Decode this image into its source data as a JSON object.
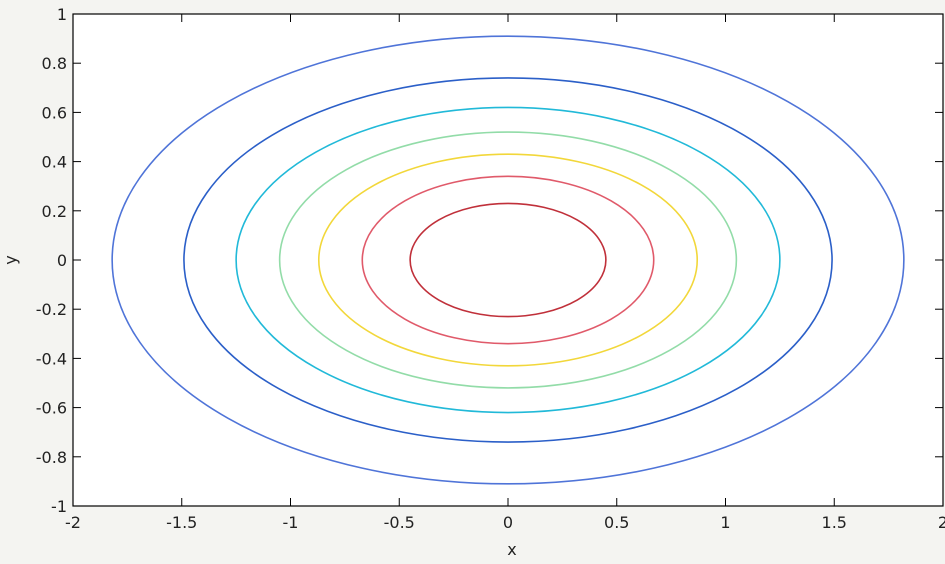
{
  "chart_data": {
    "type": "contour",
    "xlabel": "x",
    "ylabel": "y",
    "xlim": [
      -2,
      2
    ],
    "ylim": [
      -1,
      1
    ],
    "xticks": [
      "-2",
      "-1.5",
      "-1",
      "-0.5",
      "0",
      "0.5",
      "1",
      "1.5",
      "2"
    ],
    "yticks": [
      "1",
      "0.8",
      "0.6",
      "0.4",
      "0.2",
      "0",
      "-0.2",
      "-0.4",
      "-0.6",
      "-0.8",
      "-1"
    ],
    "grid": false,
    "contours": [
      {
        "x_semi_axis": 0.45,
        "y_semi_axis": 0.23,
        "color": "#c0303a"
      },
      {
        "x_semi_axis": 0.67,
        "y_semi_axis": 0.34,
        "color": "#e05a6a"
      },
      {
        "x_semi_axis": 0.87,
        "y_semi_axis": 0.43,
        "color": "#f2d73a"
      },
      {
        "x_semi_axis": 1.05,
        "y_semi_axis": 0.52,
        "color": "#92dca8"
      },
      {
        "x_semi_axis": 1.25,
        "y_semi_axis": 0.62,
        "color": "#21b9d8"
      },
      {
        "x_semi_axis": 1.49,
        "y_semi_axis": 0.74,
        "color": "#2b5fc8"
      },
      {
        "x_semi_axis": 1.82,
        "y_semi_axis": 0.91,
        "color": "#4f74d8"
      }
    ]
  }
}
